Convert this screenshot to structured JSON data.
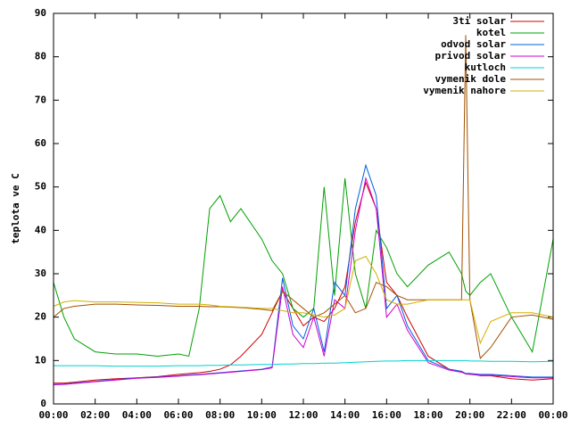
{
  "chart_data": {
    "type": "line",
    "y_label": "teplota ve C",
    "x": [
      0,
      0.5,
      1,
      2,
      3,
      4,
      5,
      6,
      6.5,
      7,
      7.5,
      8,
      8.5,
      9,
      10,
      10.5,
      11,
      11.5,
      12,
      12.5,
      13,
      13.5,
      14,
      14.5,
      15,
      15.5,
      16,
      16.5,
      17,
      18,
      19,
      19.6,
      19.8,
      20,
      20.5,
      21,
      22,
      23,
      24
    ],
    "xlim": [
      0,
      24
    ],
    "xticks": [
      {
        "value": 0,
        "label": "00:00"
      },
      {
        "value": 2,
        "label": "02:00"
      },
      {
        "value": 4,
        "label": "04:00"
      },
      {
        "value": 6,
        "label": "06:00"
      },
      {
        "value": 8,
        "label": "08:00"
      },
      {
        "value": 10,
        "label": "10:00"
      },
      {
        "value": 12,
        "label": "12:00"
      },
      {
        "value": 14,
        "label": "14:00"
      },
      {
        "value": 16,
        "label": "16:00"
      },
      {
        "value": 18,
        "label": "18:00"
      },
      {
        "value": 20,
        "label": "20:00"
      },
      {
        "value": 22,
        "label": "22:00"
      },
      {
        "value": 24,
        "label": "00:00"
      }
    ],
    "ylim": [
      0,
      90
    ],
    "yticks": [
      0,
      10,
      20,
      30,
      40,
      50,
      60,
      70,
      80,
      90
    ],
    "grid": false,
    "legend": "top-right",
    "series": [
      {
        "name": "3ti solar",
        "color": "#d00000",
        "values": [
          4.8,
          4.8,
          5,
          5.5,
          5.8,
          6,
          6.3,
          6.8,
          7,
          7.2,
          7.5,
          8,
          9,
          11,
          16,
          21,
          26,
          22,
          18,
          20,
          19,
          22,
          27,
          42,
          51,
          45,
          28,
          25,
          20,
          11,
          8,
          7.5,
          7,
          7,
          6.5,
          6.5,
          5.8,
          5.5,
          5.8
        ]
      },
      {
        "name": "kotel",
        "color": "#00a000",
        "values": [
          28,
          20,
          15,
          12,
          11.5,
          11.5,
          11,
          11.5,
          11,
          22,
          45,
          48,
          42,
          45,
          38,
          33,
          30,
          22,
          20,
          22,
          50,
          25,
          52,
          30,
          22,
          40,
          36,
          30,
          27,
          32,
          35,
          30,
          26,
          25,
          28,
          30,
          20,
          12,
          38
        ]
      },
      {
        "name": "odvod solar",
        "color": "#0060e0",
        "values": [
          4.5,
          4.6,
          4.8,
          5.2,
          5.6,
          6,
          6.2,
          6.5,
          6.7,
          6.8,
          7,
          7.2,
          7.4,
          7.6,
          8,
          8.5,
          29,
          18,
          15,
          22,
          12,
          28,
          25,
          45,
          55,
          48,
          22,
          25,
          18,
          10,
          8,
          7.5,
          7,
          7,
          6.8,
          6.8,
          6.5,
          6.2,
          6.2
        ]
      },
      {
        "name": "privod solar",
        "color": "#d000d0",
        "values": [
          4.4,
          4.5,
          4.7,
          5.1,
          5.5,
          5.9,
          6.1,
          6.4,
          6.6,
          6.7,
          6.9,
          7.1,
          7.3,
          7.5,
          7.9,
          8.3,
          27,
          16,
          13,
          20,
          11,
          24,
          22,
          40,
          52,
          45,
          20,
          23,
          17,
          9.5,
          7.8,
          7.3,
          6.9,
          6.8,
          6.6,
          6.6,
          6.3,
          6,
          6
        ]
      },
      {
        "name": "kutloch",
        "color": "#00d0d0",
        "values": [
          8.8,
          8.8,
          8.8,
          8.8,
          8.7,
          8.7,
          8.7,
          8.8,
          8.8,
          8.8,
          8.9,
          8.9,
          9,
          9,
          9.1,
          9.1,
          9.2,
          9.2,
          9.3,
          9.3,
          9.4,
          9.4,
          9.5,
          9.6,
          9.7,
          9.8,
          9.9,
          9.9,
          10,
          10,
          10,
          10,
          10,
          9.9,
          9.9,
          9.8,
          9.8,
          9.7,
          9.8
        ]
      },
      {
        "name": "vymenik dole",
        "color": "#a05000",
        "values": [
          20,
          22,
          22.5,
          23,
          23,
          22.8,
          22.7,
          22.5,
          22.5,
          22.5,
          22.4,
          22.4,
          22.3,
          22.2,
          21.8,
          21.5,
          26,
          24,
          22,
          20,
          21,
          23,
          25,
          21,
          22,
          28,
          27,
          25,
          24,
          24,
          24,
          24,
          85,
          24,
          10.5,
          13,
          20,
          20.5,
          19.5
        ]
      },
      {
        "name": "vymenik nahore",
        "color": "#d0b000",
        "values": [
          22.5,
          23.5,
          23.8,
          23.5,
          23.5,
          23.4,
          23.3,
          23,
          23,
          23,
          22.8,
          22.5,
          22.4,
          22.3,
          22,
          22,
          21.5,
          21,
          21,
          20.5,
          20,
          20.5,
          22,
          33,
          34,
          30,
          24,
          23,
          23,
          24,
          24,
          24,
          24,
          24,
          14,
          19,
          21,
          21,
          20
        ]
      }
    ]
  }
}
